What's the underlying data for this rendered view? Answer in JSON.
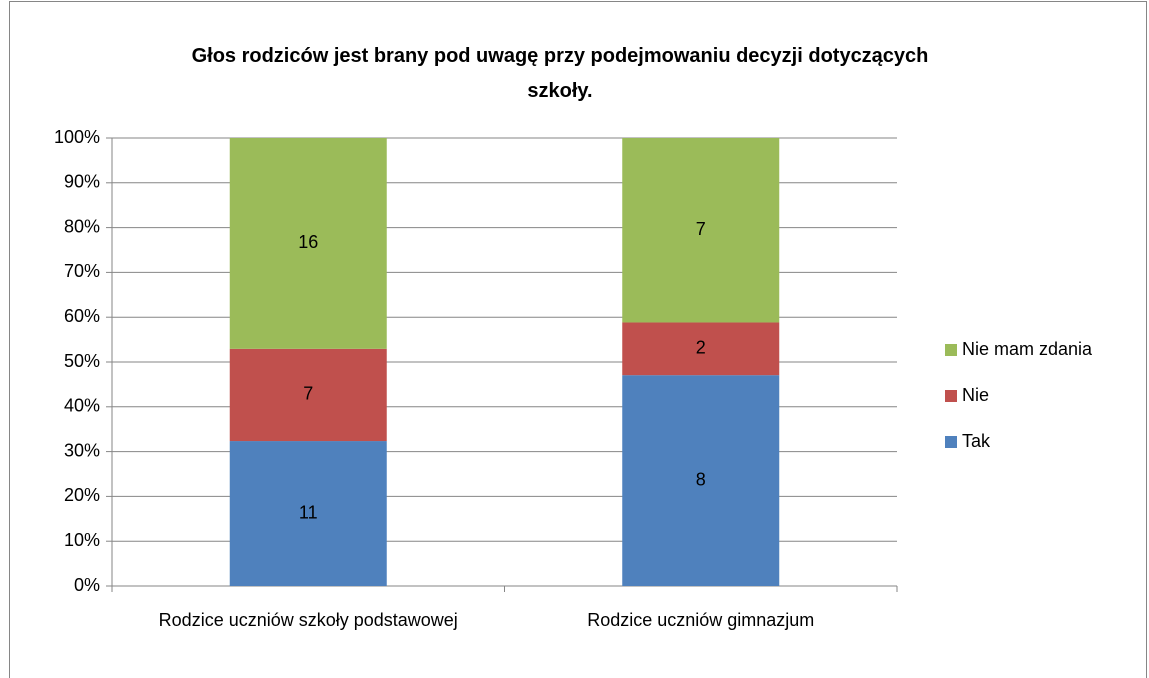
{
  "chart_data": {
    "type": "bar",
    "stacking": "percent",
    "title": "Głos rodziców jest brany pod uwagę przy podejmowaniu decyzji dotyczących szkoły.",
    "categories": [
      "Rodzice uczniów szkoły podstawowej",
      "Rodzice uczniów gimnazjum"
    ],
    "series": [
      {
        "name": "Tak",
        "color": "#4f81bd",
        "values": [
          11,
          8
        ]
      },
      {
        "name": "Nie",
        "color": "#c0504d",
        "values": [
          7,
          2
        ]
      },
      {
        "name": "Nie mam zdania",
        "color": "#9bbb59",
        "values": [
          16,
          7
        ]
      }
    ],
    "ylim": [
      0,
      100
    ],
    "yticks": [
      {
        "value": 0,
        "label": "0%"
      },
      {
        "value": 10,
        "label": "10%"
      },
      {
        "value": 20,
        "label": "20%"
      },
      {
        "value": 30,
        "label": "30%"
      },
      {
        "value": 40,
        "label": "40%"
      },
      {
        "value": 50,
        "label": "50%"
      },
      {
        "value": 60,
        "label": "60%"
      },
      {
        "value": 70,
        "label": "70%"
      },
      {
        "value": 80,
        "label": "80%"
      },
      {
        "value": 90,
        "label": "90%"
      },
      {
        "value": 100,
        "label": "100%"
      }
    ],
    "grid": true,
    "legend": "right"
  }
}
